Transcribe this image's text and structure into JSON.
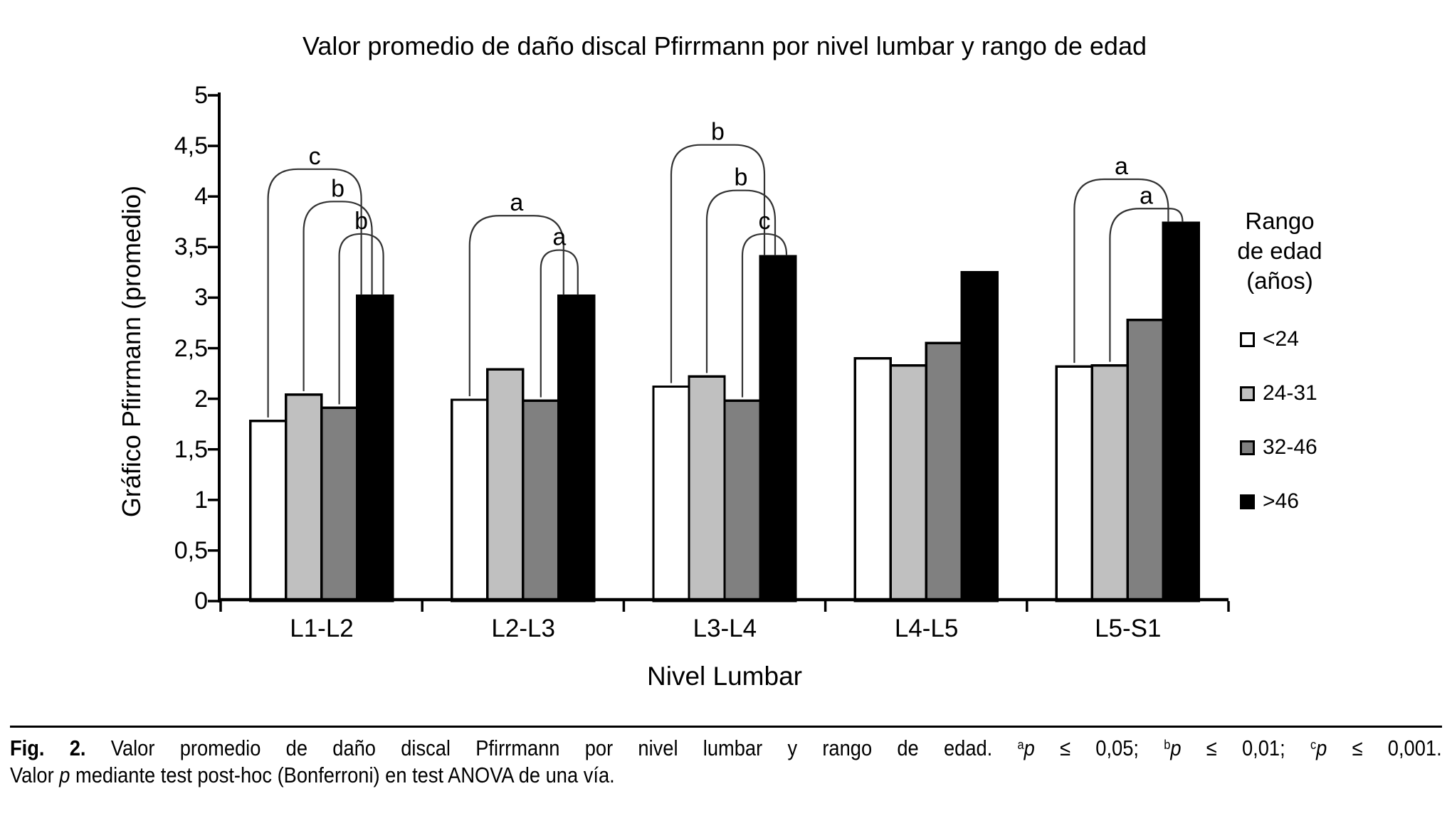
{
  "figure": {
    "title": "Valor promedio de daño discal Pfirrmann por nivel lumbar y rango de edad"
  },
  "chart_data": {
    "type": "bar",
    "title": "Valor promedio de daño discal Pfirrmann por nivel lumbar y rango de edad",
    "xlabel": "Nivel Lumbar",
    "ylabel": "Gráfico Pfirrmann (promedio)",
    "categories": [
      "L1-L2",
      "L2-L3",
      "L3-L4",
      "L4-L5",
      "L5-S1"
    ],
    "series": [
      {
        "name": "<24",
        "color": "#ffffff",
        "values": [
          1.78,
          1.99,
          2.12,
          2.4,
          2.32
        ]
      },
      {
        "name": "24-31",
        "color": "#c0c0c0",
        "values": [
          2.04,
          2.29,
          2.22,
          2.33,
          2.33
        ]
      },
      {
        "name": "32-46",
        "color": "#808080",
        "values": [
          1.91,
          1.98,
          1.98,
          2.55,
          2.78
        ]
      },
      {
        "name": ">46",
        "color": "#000000",
        "values": [
          3.02,
          3.02,
          3.41,
          3.25,
          3.74
        ]
      }
    ],
    "ylim": [
      0,
      5
    ],
    "ytick_labels_top_down": [
      "5",
      "4,5",
      "4",
      "3,5",
      "3",
      "2,5",
      "2",
      "1,5",
      "1",
      "0,5",
      "0"
    ],
    "grid": false,
    "bar_border_color": "#000000",
    "legend": {
      "position": "right",
      "title": "Rango\nde edad\n(años)"
    },
    "significance_brackets": [
      {
        "group": 0,
        "from_series": 0,
        "to_series": 3,
        "top": 4.27,
        "label": "c"
      },
      {
        "group": 0,
        "from_series": 1,
        "to_series": 3,
        "top": 3.95,
        "label": "b"
      },
      {
        "group": 0,
        "from_series": 2,
        "to_series": 3,
        "top": 3.63,
        "label": "b"
      },
      {
        "group": 1,
        "from_series": 0,
        "to_series": 3,
        "top": 3.81,
        "label": "a"
      },
      {
        "group": 1,
        "from_series": 2,
        "to_series": 3,
        "top": 3.47,
        "label": "a"
      },
      {
        "group": 2,
        "from_series": 0,
        "to_series": 3,
        "top": 4.51,
        "label": "b"
      },
      {
        "group": 2,
        "from_series": 1,
        "to_series": 3,
        "top": 4.06,
        "label": "b"
      },
      {
        "group": 2,
        "from_series": 2,
        "to_series": 3,
        "top": 3.63,
        "label": "c"
      },
      {
        "group": 4,
        "from_series": 0,
        "to_series": 3,
        "top": 4.17,
        "label": "a"
      },
      {
        "group": 4,
        "from_series": 1,
        "to_series": 3,
        "top": 3.88,
        "label": "a"
      }
    ]
  },
  "caption": {
    "line1": [
      {
        "t": "Fig. 2.",
        "s": "b"
      },
      {
        "t": " Valor promedio de daño discal Pfirrmann por nivel lumbar y rango de edad. ",
        "s": "n"
      },
      {
        "t": "a",
        "s": "sup"
      },
      {
        "t": "p",
        "s": "i"
      },
      {
        "t": " ≤ 0,05; ",
        "s": "n"
      },
      {
        "t": "b",
        "s": "sup"
      },
      {
        "t": "p",
        "s": "i"
      },
      {
        "t": " ≤ 0,01; ",
        "s": "n"
      },
      {
        "t": "c",
        "s": "sup"
      },
      {
        "t": "p",
        "s": "i"
      },
      {
        "t": " ≤ 0,001.",
        "s": "n"
      }
    ],
    "line2": [
      {
        "t": "Valor ",
        "s": "n"
      },
      {
        "t": "p",
        "s": "i"
      },
      {
        "t": " mediante test post-hoc (Bonferroni) en test ANOVA de una vía.",
        "s": "n"
      }
    ]
  }
}
